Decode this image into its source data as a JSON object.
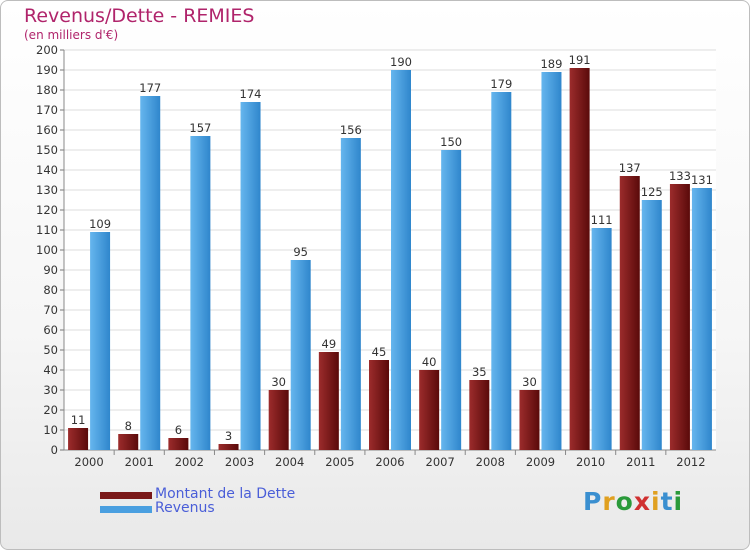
{
  "chart_data": {
    "type": "bar",
    "title": "Revenus/Dette - REMIES",
    "subtitle": "(en milliers d'€)",
    "categories": [
      "2000",
      "2001",
      "2002",
      "2003",
      "2004",
      "2005",
      "2006",
      "2007",
      "2008",
      "2009",
      "2010",
      "2011",
      "2012"
    ],
    "series": [
      {
        "name": "Montant de la Dette",
        "color": "#7a1818",
        "values": [
          11,
          8,
          6,
          3,
          30,
          49,
          45,
          40,
          35,
          30,
          191,
          137,
          133
        ]
      },
      {
        "name": "Revenus",
        "color": "#4a9fe0",
        "values": [
          109,
          177,
          157,
          174,
          95,
          156,
          190,
          150,
          179,
          189,
          111,
          125,
          131
        ]
      }
    ],
    "ylim": [
      0,
      200
    ],
    "ytick_step": 10,
    "grid": true,
    "legend_position": "bottom-left"
  },
  "logo": {
    "text": "Proxiti"
  }
}
